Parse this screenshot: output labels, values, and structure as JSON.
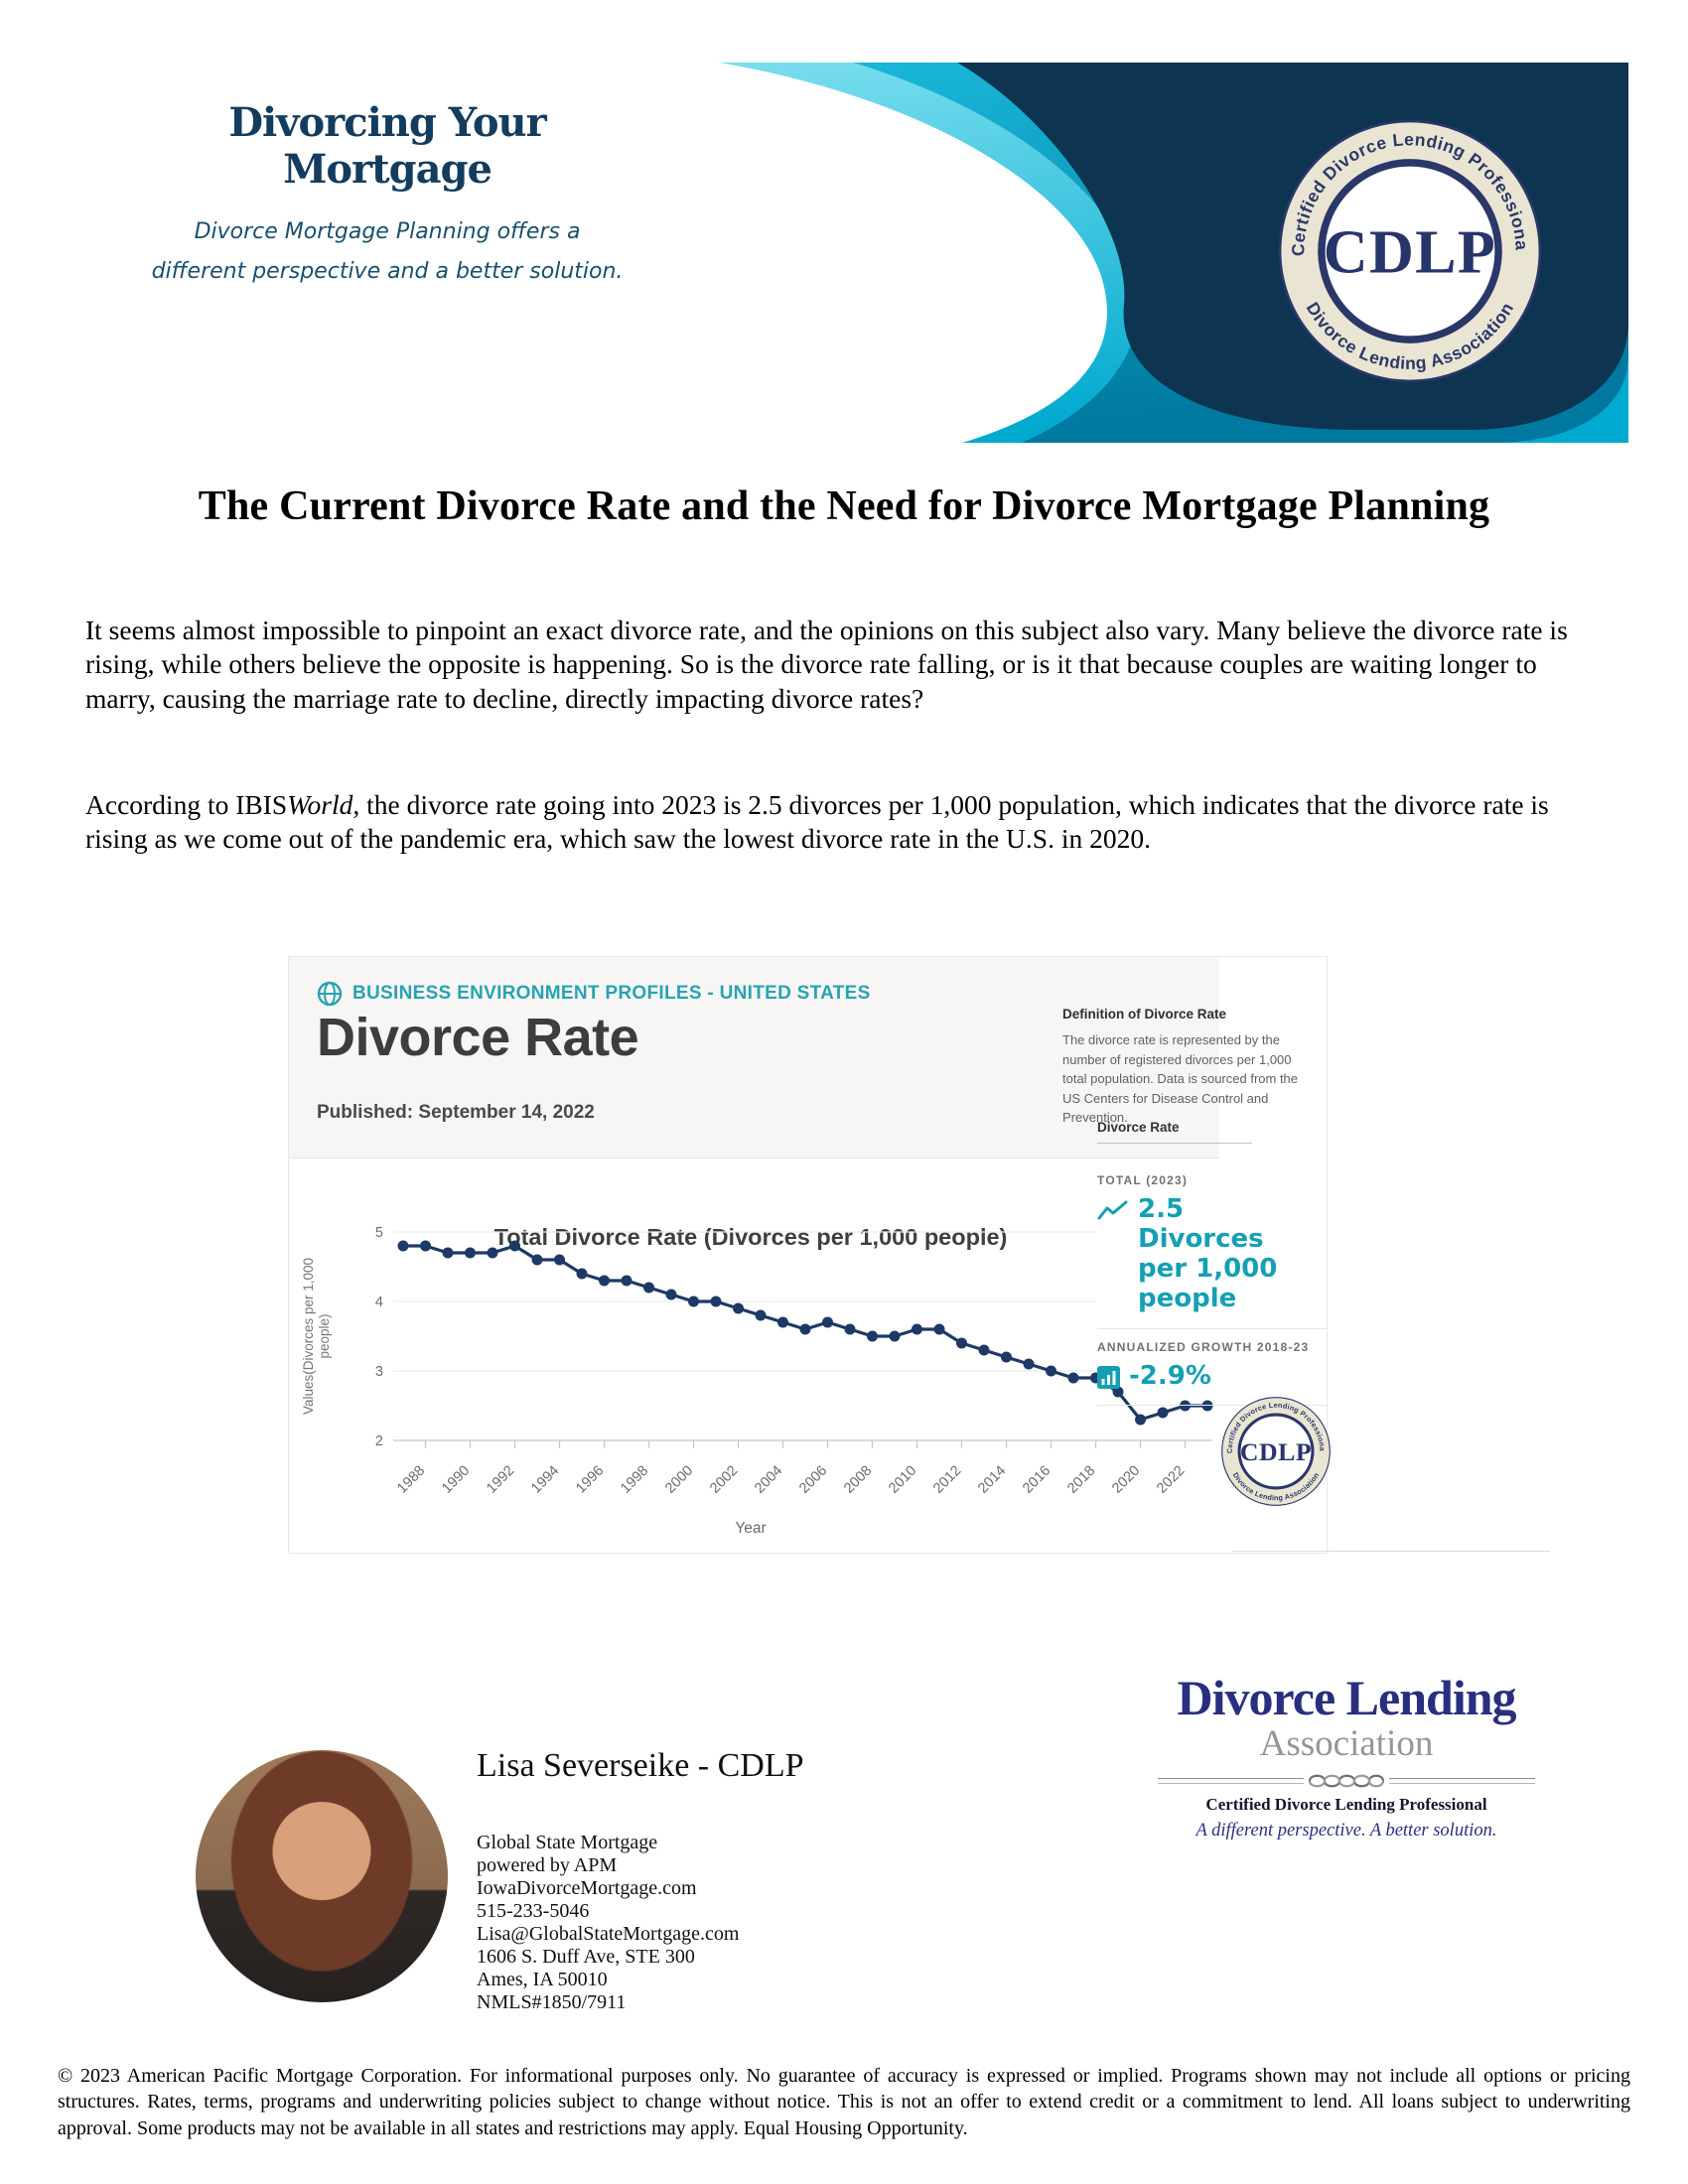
{
  "banner": {
    "title": "Divorcing Your Mortgage",
    "tagline_line1": "Divorce Mortgage Planning offers a",
    "tagline_line2": "different perspective and a better solution.",
    "colors": {
      "navy": "#0d3450",
      "teal_light": "#3ecfe6",
      "teal_dark": "#0095be"
    }
  },
  "seal": {
    "acronym": "CDLP",
    "top_text": "Certified Divorce Lending Professional",
    "bottom_text": "Divorce Lending Association"
  },
  "article": {
    "heading": "The Current Divorce Rate and the Need for Divorce Mortgage Planning",
    "paragraph1": "It seems almost impossible to pinpoint an exact divorce rate, and the opinions on this subject also vary. Many believe the divorce rate is rising, while others believe the opposite is happening. So is the divorce rate falling, or is it that because couples are waiting longer to marry, causing the marriage rate to decline, directly impacting divorce rates?",
    "paragraph2_prefix": "According to IBIS",
    "paragraph2_italic": "World",
    "paragraph2_suffix": ", the divorce rate going into 2023 is 2.5 divorces per 1,000 population, which indicates that the divorce rate is rising as we come out of the pandemic era, which saw the lowest divorce rate in the U.S. in 2020."
  },
  "ibis": {
    "brand": "BUSINESS ENVIRONMENT PROFILES - UNITED STATES",
    "title": "Divorce Rate",
    "published": "Published: September 14, 2022",
    "definition_title": "Definition of Divorce Rate",
    "definition_body": "The divorce rate is represented by the number of registered divorces per 1,000 total population. Data is sourced from the US Centers for Disease Control and Prevention.",
    "sidebar_label": "Divorce Rate",
    "accent_color": "#14a0b4",
    "stats": {
      "total_label": "TOTAL (2023)",
      "total_value": "2.5 Divorces per 1,000 people",
      "growth_label": "ANNUALIZED GROWTH 2018-23",
      "growth_value": "-2.9%"
    }
  },
  "chart_data": {
    "type": "line",
    "title": "Total Divorce Rate (Divorces per 1,000 people)",
    "xlabel": "Year",
    "ylabel": "Values(Divorces per 1,000 people)",
    "ylabel_lines": [
      "Values(Divorces per 1,000",
      "people)"
    ],
    "ylim": [
      2,
      5
    ],
    "yticks": [
      2,
      3,
      4,
      5
    ],
    "grid": true,
    "legend_position": "none",
    "line_color": "#1d3966",
    "x": [
      1987,
      1988,
      1989,
      1990,
      1991,
      1992,
      1993,
      1994,
      1995,
      1996,
      1997,
      1998,
      1999,
      2000,
      2001,
      2002,
      2003,
      2004,
      2005,
      2006,
      2007,
      2008,
      2009,
      2010,
      2011,
      2012,
      2013,
      2014,
      2015,
      2016,
      2017,
      2018,
      2019,
      2020,
      2021,
      2022,
      2023
    ],
    "values": [
      4.8,
      4.8,
      4.7,
      4.7,
      4.7,
      4.8,
      4.6,
      4.6,
      4.4,
      4.3,
      4.3,
      4.2,
      4.1,
      4.0,
      4.0,
      3.9,
      3.8,
      3.7,
      3.6,
      3.7,
      3.6,
      3.5,
      3.5,
      3.6,
      3.6,
      3.4,
      3.3,
      3.2,
      3.1,
      3.0,
      2.9,
      2.9,
      2.7,
      2.3,
      2.4,
      2.5,
      2.5
    ],
    "xtick_labels": [
      "1988",
      "1990",
      "1992",
      "1994",
      "1996",
      "1998",
      "2000",
      "2002",
      "2004",
      "2006",
      "2008",
      "2010",
      "2012",
      "2014",
      "2016",
      "2018",
      "2020",
      "2022"
    ]
  },
  "contact": {
    "name": "Lisa Severseike - CDLP",
    "lines": [
      "Global State Mortgage",
      "powered by APM",
      "IowaDivorceMortgage.com",
      "515-233-5046",
      "Lisa@GlobalStateMortgage.com",
      "1606 S. Duff Ave, STE 300",
      "Ames, IA 50010",
      "NMLS#1850/7911"
    ]
  },
  "dla_logo": {
    "line1": "Divorce Lending",
    "line2": "Association",
    "certification": "Certified Divorce Lending Professional",
    "tagline": "A different perspective. A better solution."
  },
  "footer": {
    "text": "© 2023 American Pacific Mortgage Corporation. For informational purposes only. No guarantee of accuracy is expressed or implied. Programs shown may not include all options or pricing structures. Rates, terms, programs and underwriting policies subject to change without notice. This is not an offer to extend credit or a commitment to lend. All loans subject to underwriting approval. Some products may not be available in all states and restrictions may apply. Equal Housing Opportunity."
  }
}
